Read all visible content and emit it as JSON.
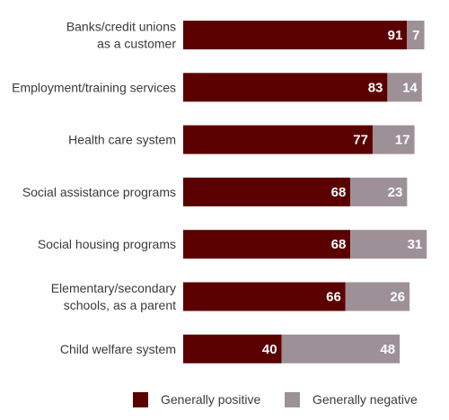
{
  "chart_data": {
    "type": "bar",
    "orientation": "horizontal",
    "stacked": true,
    "categories": [
      [
        "Banks/credit unions",
        "as a customer"
      ],
      [
        "Employment/training services"
      ],
      [
        "Health care system"
      ],
      [
        "Social assistance programs"
      ],
      [
        "Social housing programs"
      ],
      [
        "Elementary/secondary",
        "schools, as a parent"
      ],
      [
        "Child welfare system"
      ]
    ],
    "series": [
      {
        "name": "Generally positive",
        "color": "#5a0000",
        "values": [
          91,
          83,
          77,
          68,
          68,
          66,
          40
        ]
      },
      {
        "name": "Generally negative",
        "color": "#9e9097",
        "values": [
          7,
          14,
          17,
          23,
          31,
          26,
          48
        ]
      }
    ],
    "xlim": [
      0,
      100
    ],
    "grid": false,
    "legend": "bottom-center",
    "data_labels": true
  }
}
